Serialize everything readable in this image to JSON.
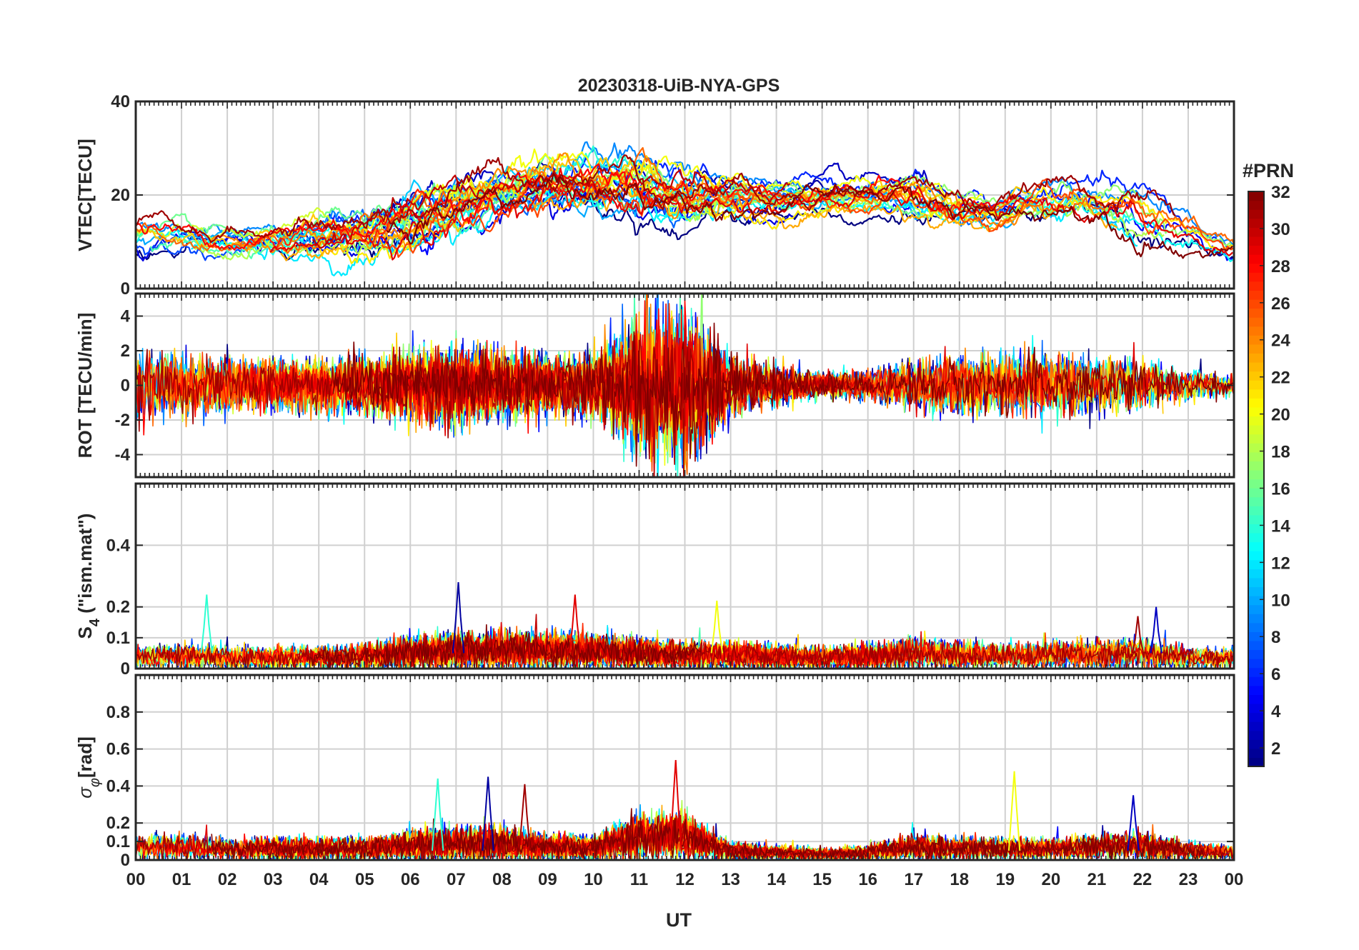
{
  "chart_data": {
    "type": "line",
    "title": "20230318-UiB-NYA-GPS",
    "xlabel": "UT",
    "xlim": [
      0,
      24
    ],
    "x_ticks": [
      0,
      1,
      2,
      3,
      4,
      5,
      6,
      7,
      8,
      9,
      10,
      11,
      12,
      13,
      14,
      15,
      16,
      17,
      18,
      19,
      20,
      21,
      22,
      23,
      24
    ],
    "x_tick_labels": [
      "00",
      "01",
      "02",
      "03",
      "04",
      "05",
      "06",
      "07",
      "08",
      "09",
      "10",
      "11",
      "12",
      "13",
      "14",
      "15",
      "16",
      "17",
      "18",
      "19",
      "20",
      "21",
      "22",
      "23",
      "00"
    ],
    "grid": true,
    "panels": [
      {
        "id": "vtec",
        "ylabel": "VTEC[TECU]",
        "ylim": [
          0,
          40
        ],
        "y_ticks": [
          0,
          20,
          40
        ],
        "y_tick_labels": [
          "0",
          "20",
          "40"
        ],
        "envelope": {
          "hours": [
            0,
            1,
            2,
            3,
            4,
            5,
            6,
            7,
            8,
            9,
            10,
            11,
            12,
            13,
            14,
            15,
            16,
            17,
            18,
            19,
            20,
            21,
            22,
            23,
            24
          ],
          "mean": [
            11,
            10,
            10,
            10,
            11,
            12,
            14,
            18,
            21,
            23,
            23,
            22,
            20,
            20,
            19,
            20,
            20,
            20,
            17,
            16,
            19,
            19,
            16,
            11,
            8
          ],
          "spread": [
            5,
            4,
            4,
            4,
            5,
            6,
            7,
            7,
            6,
            6,
            6,
            7,
            6,
            5,
            4,
            4,
            4,
            5,
            5,
            4,
            5,
            5,
            6,
            4,
            3
          ]
        }
      },
      {
        "id": "rot",
        "ylabel": "ROT [TECU/min]",
        "ylim": [
          -5.3,
          5.3
        ],
        "y_ticks": [
          -4,
          -2,
          0,
          2,
          4
        ],
        "y_tick_labels": [
          "-4",
          "-2",
          "0",
          "2",
          "4"
        ],
        "envelope": {
          "hours": [
            0,
            1,
            2,
            3,
            4,
            5,
            6,
            7,
            8,
            9,
            10,
            11,
            12,
            13,
            14,
            15,
            16,
            17,
            18,
            19,
            20,
            21,
            22,
            23,
            24
          ],
          "amplitude": [
            1.6,
            1.4,
            1.3,
            1.2,
            1.3,
            1.4,
            1.6,
            1.8,
            1.6,
            1.4,
            1.5,
            3.2,
            3.6,
            1.4,
            0.9,
            0.6,
            0.7,
            1.1,
            1.3,
            1.4,
            1.5,
            1.5,
            1.2,
            0.7,
            0.5
          ]
        }
      },
      {
        "id": "s4",
        "ylabel": "S4 (\"ism.mat\")",
        "ylabel_main": "S",
        "ylabel_sub": "4",
        "ylabel_rest": " (\"ism.mat\")",
        "ylim": [
          0,
          0.6
        ],
        "y_ticks": [
          0,
          0.1,
          0.2,
          0.4
        ],
        "y_tick_labels": [
          "0",
          "0.1",
          "0.2",
          "0.4"
        ],
        "envelope": {
          "hours": [
            0,
            1,
            2,
            3,
            4,
            5,
            6,
            7,
            8,
            9,
            10,
            11,
            12,
            13,
            14,
            15,
            16,
            17,
            18,
            19,
            20,
            21,
            22,
            23,
            24
          ],
          "base": [
            0.04,
            0.04,
            0.035,
            0.035,
            0.035,
            0.04,
            0.05,
            0.06,
            0.06,
            0.06,
            0.055,
            0.05,
            0.045,
            0.045,
            0.04,
            0.035,
            0.04,
            0.05,
            0.045,
            0.04,
            0.045,
            0.05,
            0.05,
            0.035,
            0.035
          ]
        },
        "peaks": [
          {
            "x": 1.55,
            "y": 0.24
          },
          {
            "x": 7.05,
            "y": 0.28
          },
          {
            "x": 9.6,
            "y": 0.24
          },
          {
            "x": 12.7,
            "y": 0.22
          },
          {
            "x": 22.3,
            "y": 0.2
          },
          {
            "x": 21.9,
            "y": 0.17
          }
        ]
      },
      {
        "id": "sigma_phi",
        "ylabel": "σφ[rad]",
        "ylabel_main": "σ",
        "ylabel_sub": "φ",
        "ylabel_rest": "[rad]",
        "ylim": [
          0,
          1
        ],
        "y_ticks": [
          0,
          0.1,
          0.2,
          0.4,
          0.6,
          0.8
        ],
        "y_tick_labels": [
          "0",
          "0.1",
          "0.2",
          "0.4",
          "0.6",
          "0.8"
        ],
        "envelope": {
          "hours": [
            0,
            1,
            2,
            3,
            4,
            5,
            6,
            7,
            8,
            9,
            10,
            11,
            12,
            13,
            14,
            15,
            16,
            17,
            18,
            19,
            20,
            21,
            22,
            23,
            24
          ],
          "base": [
            0.07,
            0.07,
            0.06,
            0.06,
            0.06,
            0.06,
            0.08,
            0.09,
            0.09,
            0.07,
            0.07,
            0.12,
            0.13,
            0.05,
            0.04,
            0.03,
            0.04,
            0.07,
            0.06,
            0.06,
            0.06,
            0.07,
            0.08,
            0.05,
            0.04
          ]
        },
        "peaks": [
          {
            "x": 6.6,
            "y": 0.44
          },
          {
            "x": 7.7,
            "y": 0.45
          },
          {
            "x": 11.8,
            "y": 0.54
          },
          {
            "x": 19.2,
            "y": 0.48
          },
          {
            "x": 21.8,
            "y": 0.35
          },
          {
            "x": 8.5,
            "y": 0.41
          }
        ]
      }
    ],
    "colorbar": {
      "title": "#PRN",
      "range": [
        1,
        32
      ],
      "ticks": [
        2,
        4,
        6,
        8,
        10,
        12,
        14,
        16,
        18,
        20,
        22,
        24,
        26,
        28,
        30,
        32
      ],
      "tick_labels": [
        "2",
        "4",
        "6",
        "8",
        "10",
        "12",
        "14",
        "16",
        "18",
        "20",
        "22",
        "24",
        "26",
        "28",
        "30",
        "32"
      ],
      "colormap": "jet"
    },
    "series_note_prn": [
      1,
      2,
      3,
      4,
      5,
      6,
      7,
      8,
      9,
      10,
      11,
      12,
      13,
      14,
      15,
      16,
      17,
      18,
      19,
      20,
      21,
      22,
      23,
      24,
      25,
      26,
      27,
      28,
      29,
      30,
      31,
      32
    ]
  }
}
